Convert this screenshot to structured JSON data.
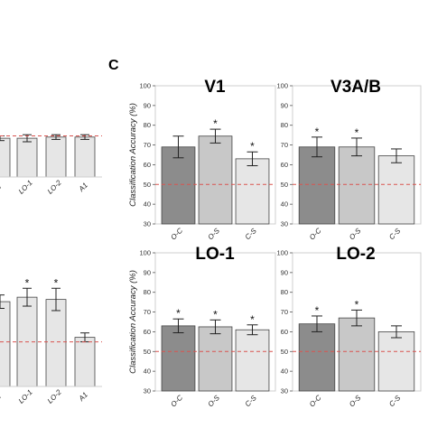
{
  "panel_letter": "C",
  "left_fragment_top": {
    "categories": [
      "3",
      "LO-1",
      "LO-2",
      "A1"
    ],
    "values": [
      63,
      63,
      64,
      64
    ],
    "errors": [
      2,
      3,
      2,
      2
    ],
    "chance": 65
  },
  "left_fragment_bottom": {
    "categories": [
      "1",
      "LO-1",
      "LO-2",
      "A1"
    ],
    "values": [
      68,
      70,
      69,
      52
    ],
    "errors": [
      3,
      4,
      5,
      2
    ],
    "stars": [
      false,
      true,
      true,
      false
    ],
    "chance": 50
  },
  "chart_data": [
    {
      "type": "bar",
      "title": "V1",
      "ylabel": "Classification Accuracy (%)",
      "categories": [
        "O-C",
        "O-S",
        "C-S"
      ],
      "values": [
        69,
        74.5,
        63
      ],
      "errors": [
        5.5,
        3.5,
        3.5
      ],
      "significant": [
        false,
        true,
        true
      ],
      "chance": 50,
      "ylim": [
        30,
        100
      ],
      "yticks": [
        30,
        40,
        50,
        60,
        70,
        80,
        90,
        100
      ],
      "colors": [
        "#8c8c8c",
        "#c8c8c8",
        "#e6e6e6"
      ]
    },
    {
      "type": "bar",
      "title": "V3A/B",
      "ylabel": "",
      "categories": [
        "O-C",
        "O-S",
        "C-S"
      ],
      "values": [
        69,
        69,
        64.5
      ],
      "errors": [
        5,
        4.5,
        3.5
      ],
      "significant": [
        true,
        true,
        false
      ],
      "chance": 50,
      "ylim": [
        30,
        100
      ],
      "yticks": [
        30,
        40,
        50,
        60,
        70,
        80,
        90,
        100
      ],
      "colors": [
        "#8c8c8c",
        "#c8c8c8",
        "#e6e6e6"
      ]
    },
    {
      "type": "bar",
      "title": "LO-1",
      "ylabel": "Classification Accuracy (%)",
      "categories": [
        "O-C",
        "O-S",
        "C-S"
      ],
      "values": [
        63,
        62.5,
        61
      ],
      "errors": [
        3.5,
        3.5,
        2.5
      ],
      "significant": [
        true,
        true,
        true
      ],
      "chance": 50,
      "ylim": [
        30,
        100
      ],
      "yticks": [
        30,
        40,
        50,
        60,
        70,
        80,
        90,
        100
      ],
      "colors": [
        "#8c8c8c",
        "#c8c8c8",
        "#e6e6e6"
      ]
    },
    {
      "type": "bar",
      "title": "LO-2",
      "ylabel": "",
      "categories": [
        "O-C",
        "O-S",
        "C-S"
      ],
      "values": [
        64,
        67,
        60
      ],
      "errors": [
        4,
        4,
        3
      ],
      "significant": [
        true,
        true,
        false
      ],
      "chance": 50,
      "ylim": [
        30,
        100
      ],
      "yticks": [
        30,
        40,
        50,
        60,
        70,
        80,
        90,
        100
      ],
      "colors": [
        "#8c8c8c",
        "#c8c8c8",
        "#e6e6e6"
      ]
    }
  ]
}
